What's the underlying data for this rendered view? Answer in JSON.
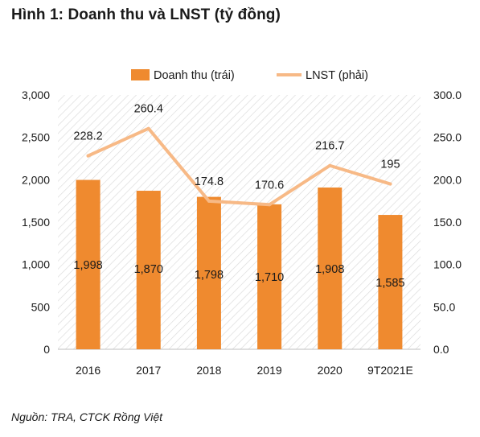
{
  "title": "Hình 1: Doanh thu và LNST (tỷ đồng)",
  "source": "Nguồn: TRA, CTCK Rồng Việt",
  "colors": {
    "bar": "#ef8a2f",
    "line": "#f7b986",
    "hatch": "#d9d9d9"
  },
  "chart_data": {
    "type": "bar",
    "categories": [
      "2016",
      "2017",
      "2018",
      "2019",
      "2020",
      "9T2021E"
    ],
    "series": [
      {
        "name": "Doanh thu (trái)",
        "type": "bar",
        "axis": "left",
        "values": [
          1998,
          1870,
          1798,
          1710,
          1908,
          1585
        ]
      },
      {
        "name": "LNST (phải)",
        "type": "line",
        "axis": "right",
        "values": [
          228.2,
          260.4,
          174.8,
          170.6,
          216.7,
          195
        ]
      }
    ],
    "bar_labels": [
      "1,998",
      "1,870",
      "1,798",
      "1,710",
      "1,908",
      "1,585"
    ],
    "line_labels": [
      "228.2",
      "260.4",
      "174.8",
      "170.6",
      "216.7",
      "195"
    ],
    "left_axis": {
      "ylim": [
        0,
        3000
      ],
      "ticks": [
        "0",
        "500",
        "1,000",
        "1,500",
        "2,000",
        "2,500",
        "3,000"
      ]
    },
    "right_axis": {
      "ylim": [
        0,
        300
      ],
      "ticks": [
        "0.0",
        "50.0",
        "100.0",
        "150.0",
        "200.0",
        "250.0",
        "300.0"
      ]
    },
    "legend_position": "top",
    "background": "diagonal-hatch"
  }
}
